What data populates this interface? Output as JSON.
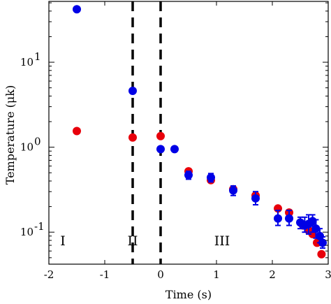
{
  "chart_data": {
    "type": "scatter",
    "title": "",
    "xlabel": "Time (s)",
    "ylabel": "Temperature (μk)",
    "xlim": [
      -2,
      3
    ],
    "ylim": [
      0.042,
      52
    ],
    "yscale": "log",
    "grid": false,
    "x_ticks": [
      -2,
      -1,
      0,
      1,
      2,
      3
    ],
    "x_tick_labels": [
      "-2",
      "-1",
      "0",
      "1",
      "2",
      "3"
    ],
    "y_ticks": [
      0.1,
      1,
      10
    ],
    "y_tick_labels": [
      "10",
      "10",
      "10"
    ],
    "y_tick_exponents": [
      "-1",
      "0",
      "1"
    ],
    "vlines": [
      -0.5,
      0
    ],
    "regions": [
      {
        "label": "I",
        "x": -1.75
      },
      {
        "label": "II",
        "x": -0.5
      },
      {
        "label": "III",
        "x": 1.1
      }
    ],
    "series": [
      {
        "color": "#e8000b",
        "points": [
          {
            "x": -1.5,
            "y": 1.55
          },
          {
            "x": -0.5,
            "y": 1.3
          },
          {
            "x": 0.0,
            "y": 1.35
          },
          {
            "x": 0.5,
            "y": 0.52
          },
          {
            "x": 0.9,
            "y": 0.41
          },
          {
            "x": 1.3,
            "y": 0.32
          },
          {
            "x": 1.7,
            "y": 0.27
          },
          {
            "x": 2.1,
            "y": 0.19
          },
          {
            "x": 2.3,
            "y": 0.17
          },
          {
            "x": 2.55,
            "y": 0.12
          },
          {
            "x": 2.65,
            "y": 0.105
          },
          {
            "x": 2.72,
            "y": 0.095
          },
          {
            "x": 2.8,
            "y": 0.075
          },
          {
            "x": 2.88,
            "y": 0.055
          }
        ]
      },
      {
        "color": "#0000e6",
        "points": [
          {
            "x": -1.5,
            "y": 42,
            "err": null
          },
          {
            "x": -0.5,
            "y": 4.6,
            "err": null
          },
          {
            "x": 0.0,
            "y": 0.95,
            "err": null
          },
          {
            "x": 0.25,
            "y": 0.95,
            "err": null
          },
          {
            "x": 0.5,
            "y": 0.47,
            "err": [
              0.42,
              0.52
            ]
          },
          {
            "x": 0.9,
            "y": 0.44,
            "err": [
              0.39,
              0.49
            ]
          },
          {
            "x": 1.3,
            "y": 0.31,
            "err": [
              0.27,
              0.35
            ]
          },
          {
            "x": 1.7,
            "y": 0.25,
            "err": [
              0.21,
              0.3
            ]
          },
          {
            "x": 2.1,
            "y": 0.145,
            "err": [
              0.12,
              0.18
            ]
          },
          {
            "x": 2.3,
            "y": 0.145,
            "err": [
              0.12,
              0.18
            ]
          },
          {
            "x": 2.5,
            "y": 0.13,
            "err": [
              0.11,
              0.15
            ]
          },
          {
            "x": 2.58,
            "y": 0.12,
            "err": [
              0.1,
              0.15
            ]
          },
          {
            "x": 2.65,
            "y": 0.125,
            "err": [
              0.095,
              0.16
            ]
          },
          {
            "x": 2.72,
            "y": 0.135,
            "err": [
              0.1,
              0.16
            ]
          },
          {
            "x": 2.78,
            "y": 0.11,
            "err": [
              0.085,
              0.14
            ]
          },
          {
            "x": 2.85,
            "y": 0.09,
            "err": [
              0.075,
              0.11
            ]
          },
          {
            "x": 2.9,
            "y": 0.075,
            "err": [
              0.065,
              0.088
            ]
          }
        ]
      }
    ]
  }
}
